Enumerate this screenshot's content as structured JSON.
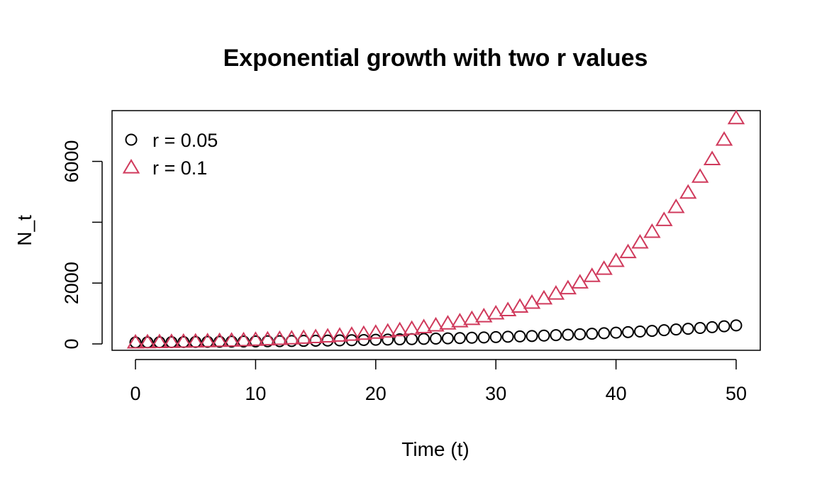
{
  "chart_data": {
    "type": "scatter",
    "title": "Exponential growth with two r values",
    "xlabel": "Time (t)",
    "ylabel": "N_t",
    "xlim": [
      0,
      50
    ],
    "ylim": [
      0,
      7389
    ],
    "x_ticks": [
      0,
      10,
      20,
      30,
      40,
      50
    ],
    "y_ticks": [
      0,
      2000,
      4000,
      6000
    ],
    "y_tick_labels": [
      "0",
      "2000",
      "",
      "6000"
    ],
    "grid": false,
    "legend_position": "top-left",
    "x": [
      0,
      1,
      2,
      3,
      4,
      5,
      6,
      7,
      8,
      9,
      10,
      11,
      12,
      13,
      14,
      15,
      16,
      17,
      18,
      19,
      20,
      21,
      22,
      23,
      24,
      25,
      26,
      27,
      28,
      29,
      30,
      31,
      32,
      33,
      34,
      35,
      36,
      37,
      38,
      39,
      40,
      41,
      42,
      43,
      44,
      45,
      46,
      47,
      48,
      49,
      50
    ],
    "series": [
      {
        "name": "r = 0.05",
        "marker": "circle",
        "color": "#000000",
        "values": [
          50.0,
          52.6,
          55.3,
          58.1,
          61.1,
          64.2,
          67.5,
          71.0,
          74.6,
          78.4,
          82.4,
          86.7,
          91.1,
          95.8,
          100.7,
          105.9,
          111.3,
          117.0,
          123.0,
          129.3,
          135.9,
          142.9,
          150.2,
          157.9,
          166.0,
          174.5,
          183.5,
          192.9,
          202.8,
          213.2,
          224.1,
          235.6,
          247.7,
          260.4,
          273.8,
          287.8,
          302.5,
          318.1,
          334.4,
          351.5,
          369.5,
          388.5,
          408.4,
          429.3,
          451.4,
          474.5,
          498.8,
          524.4,
          551.3,
          579.6,
          609.1
        ]
      },
      {
        "name": "r = 0.1",
        "marker": "triangle",
        "color": "#d03a5c",
        "values": [
          50.0,
          55.3,
          61.1,
          67.5,
          74.6,
          82.4,
          91.1,
          100.7,
          111.3,
          123.0,
          135.9,
          150.2,
          166.0,
          183.5,
          202.8,
          224.1,
          247.7,
          273.8,
          302.5,
          334.4,
          369.5,
          408.4,
          451.4,
          498.8,
          551.3,
          609.1,
          673.3,
          744.1,
          822.2,
          908.7,
          1004.3,
          1109.9,
          1226.6,
          1355.6,
          1498.2,
          1655.7,
          1829.9,
          2022.3,
          2234.9,
          2470.0,
          2729.8,
          3016.8,
          3334.1,
          3684.7,
          4072.3,
          4500.6,
          4973.9,
          5497.0,
          6075.1,
          6714.0,
          7420.0
        ]
      }
    ]
  }
}
